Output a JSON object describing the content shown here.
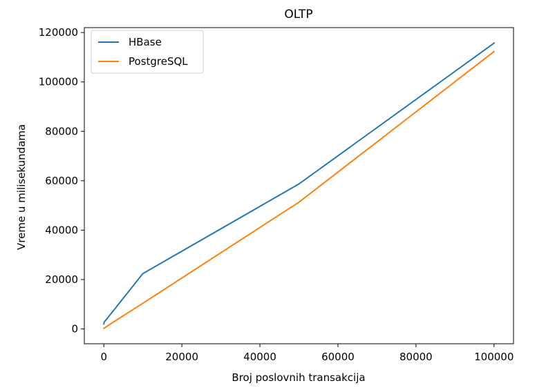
{
  "chart_data": {
    "type": "line",
    "title": "OLTP",
    "xlabel": "Broj poslovnih transakcija",
    "ylabel": "Vreme u milisekundama",
    "xlim": [
      -5000,
      105000
    ],
    "ylim": [
      -6000,
      122000
    ],
    "xticks": [
      0,
      20000,
      40000,
      60000,
      80000,
      100000
    ],
    "xtick_labels": [
      "0",
      "20000",
      "40000",
      "60000",
      "80000",
      "100000"
    ],
    "yticks": [
      0,
      20000,
      40000,
      60000,
      80000,
      100000,
      120000
    ],
    "ytick_labels": [
      "0",
      "20000",
      "40000",
      "60000",
      "80000",
      "100000",
      "120000"
    ],
    "grid": false,
    "legend_position": "top-left",
    "series": [
      {
        "name": "HBase",
        "color": "#1f77b4",
        "x": [
          10,
          100,
          1000,
          10000,
          50000,
          100000
        ],
        "y": [
          2000,
          2800,
          4500,
          22400,
          58700,
          115700
        ]
      },
      {
        "name": "PostgreSQL",
        "color": "#ff7f0e",
        "x": [
          10,
          100,
          1000,
          10000,
          50000,
          100000
        ],
        "y": [
          200,
          300,
          1300,
          10400,
          51300,
          112300
        ]
      }
    ]
  }
}
